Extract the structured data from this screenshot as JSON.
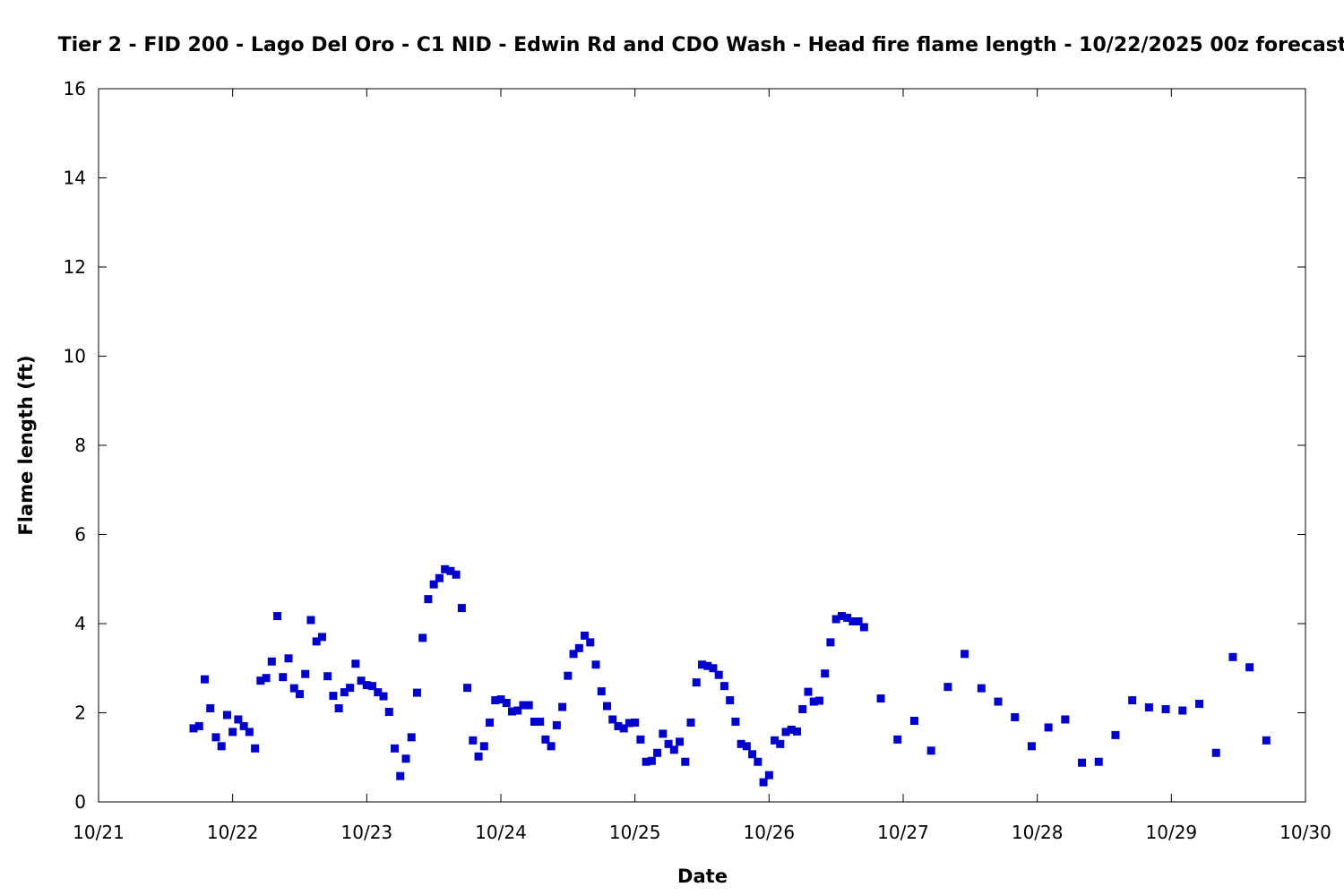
{
  "chart_data": {
    "type": "scatter",
    "title": "Tier 2 - FID 200 - Lago Del Oro - C1 NID - Edwin Rd and CDO Wash - Head fire flame length - 10/22/2025 00z forecast",
    "xlabel": "Date",
    "ylabel": "Flame length (ft)",
    "x_ticks": [
      "10/21",
      "10/22",
      "10/23",
      "10/24",
      "10/25",
      "10/26",
      "10/27",
      "10/28",
      "10/29",
      "10/30"
    ],
    "y_ticks": [
      "0",
      "2",
      "4",
      "6",
      "8",
      "10",
      "12",
      "14",
      "16"
    ],
    "ylim": [
      0,
      16
    ],
    "xlim": [
      "10/21",
      "10/30"
    ],
    "grid": false,
    "marker_color": "#0000cc",
    "points": [
      [
        "10/21 17:00",
        1.65
      ],
      [
        "10/21 18:00",
        1.7
      ],
      [
        "10/21 19:00",
        2.75
      ],
      [
        "10/21 20:00",
        2.1
      ],
      [
        "10/21 21:00",
        1.45
      ],
      [
        "10/21 22:00",
        1.25
      ],
      [
        "10/21 23:00",
        1.95
      ],
      [
        "10/22 00:00",
        1.57
      ],
      [
        "10/22 01:00",
        1.85
      ],
      [
        "10/22 02:00",
        1.7
      ],
      [
        "10/22 03:00",
        1.57
      ],
      [
        "10/22 04:00",
        1.2
      ],
      [
        "10/22 05:00",
        2.72
      ],
      [
        "10/22 06:00",
        2.78
      ],
      [
        "10/22 07:00",
        3.15
      ],
      [
        "10/22 08:00",
        4.17
      ],
      [
        "10/22 09:00",
        2.8
      ],
      [
        "10/22 10:00",
        3.22
      ],
      [
        "10/22 11:00",
        2.55
      ],
      [
        "10/22 12:00",
        2.42
      ],
      [
        "10/22 13:00",
        2.87
      ],
      [
        "10/22 14:00",
        4.08
      ],
      [
        "10/22 15:00",
        3.6
      ],
      [
        "10/22 16:00",
        3.7
      ],
      [
        "10/22 17:00",
        2.82
      ],
      [
        "10/22 18:00",
        2.38
      ],
      [
        "10/22 19:00",
        2.1
      ],
      [
        "10/22 20:00",
        2.46
      ],
      [
        "10/22 21:00",
        2.56
      ],
      [
        "10/22 22:00",
        3.1
      ],
      [
        "10/22 23:00",
        2.72
      ],
      [
        "10/23 00:00",
        2.62
      ],
      [
        "10/23 01:00",
        2.6
      ],
      [
        "10/23 02:00",
        2.46
      ],
      [
        "10/23 03:00",
        2.37
      ],
      [
        "10/23 04:00",
        2.02
      ],
      [
        "10/23 05:00",
        1.2
      ],
      [
        "10/23 06:00",
        0.58
      ],
      [
        "10/23 07:00",
        0.97
      ],
      [
        "10/23 08:00",
        1.45
      ],
      [
        "10/23 09:00",
        2.45
      ],
      [
        "10/23 10:00",
        3.68
      ],
      [
        "10/23 11:00",
        4.55
      ],
      [
        "10/23 12:00",
        4.88
      ],
      [
        "10/23 13:00",
        5.02
      ],
      [
        "10/23 14:00",
        5.22
      ],
      [
        "10/23 15:00",
        5.18
      ],
      [
        "10/23 16:00",
        5.1
      ],
      [
        "10/23 17:00",
        4.35
      ],
      [
        "10/23 18:00",
        2.56
      ],
      [
        "10/23 19:00",
        1.38
      ],
      [
        "10/23 20:00",
        1.02
      ],
      [
        "10/23 21:00",
        1.25
      ],
      [
        "10/23 22:00",
        1.78
      ],
      [
        "10/23 23:00",
        2.28
      ],
      [
        "10/24 00:00",
        2.3
      ],
      [
        "10/24 01:00",
        2.22
      ],
      [
        "10/24 02:00",
        2.03
      ],
      [
        "10/24 03:00",
        2.05
      ],
      [
        "10/24 04:00",
        2.17
      ],
      [
        "10/24 05:00",
        2.17
      ],
      [
        "10/24 06:00",
        1.8
      ],
      [
        "10/24 07:00",
        1.8
      ],
      [
        "10/24 08:00",
        1.4
      ],
      [
        "10/24 09:00",
        1.25
      ],
      [
        "10/24 10:00",
        1.72
      ],
      [
        "10/24 11:00",
        2.13
      ],
      [
        "10/24 12:00",
        2.83
      ],
      [
        "10/24 13:00",
        3.32
      ],
      [
        "10/24 14:00",
        3.45
      ],
      [
        "10/24 15:00",
        3.73
      ],
      [
        "10/24 16:00",
        3.58
      ],
      [
        "10/24 17:00",
        3.08
      ],
      [
        "10/24 18:00",
        2.48
      ],
      [
        "10/24 19:00",
        2.15
      ],
      [
        "10/24 20:00",
        1.85
      ],
      [
        "10/24 21:00",
        1.7
      ],
      [
        "10/24 22:00",
        1.65
      ],
      [
        "10/24 23:00",
        1.77
      ],
      [
        "10/25 00:00",
        1.78
      ],
      [
        "10/25 01:00",
        1.4
      ],
      [
        "10/25 02:00",
        0.9
      ],
      [
        "10/25 03:00",
        0.92
      ],
      [
        "10/25 04:00",
        1.1
      ],
      [
        "10/25 05:00",
        1.53
      ],
      [
        "10/25 06:00",
        1.3
      ],
      [
        "10/25 07:00",
        1.17
      ],
      [
        "10/25 08:00",
        1.35
      ],
      [
        "10/25 09:00",
        0.9
      ],
      [
        "10/25 10:00",
        1.78
      ],
      [
        "10/25 11:00",
        2.68
      ],
      [
        "10/25 12:00",
        3.08
      ],
      [
        "10/25 13:00",
        3.05
      ],
      [
        "10/25 14:00",
        3.0
      ],
      [
        "10/25 15:00",
        2.85
      ],
      [
        "10/25 16:00",
        2.6
      ],
      [
        "10/25 17:00",
        2.28
      ],
      [
        "10/25 18:00",
        1.8
      ],
      [
        "10/25 19:00",
        1.3
      ],
      [
        "10/25 20:00",
        1.25
      ],
      [
        "10/25 21:00",
        1.07
      ],
      [
        "10/25 22:00",
        0.9
      ],
      [
        "10/25 23:00",
        0.44
      ],
      [
        "10/26 00:00",
        0.6
      ],
      [
        "10/26 01:00",
        1.38
      ],
      [
        "10/26 02:00",
        1.3
      ],
      [
        "10/26 03:00",
        1.57
      ],
      [
        "10/26 04:00",
        1.62
      ],
      [
        "10/26 05:00",
        1.58
      ],
      [
        "10/26 06:00",
        2.08
      ],
      [
        "10/26 07:00",
        2.47
      ],
      [
        "10/26 08:00",
        2.25
      ],
      [
        "10/26 09:00",
        2.27
      ],
      [
        "10/26 10:00",
        2.88
      ],
      [
        "10/26 11:00",
        3.58
      ],
      [
        "10/26 12:00",
        4.1
      ],
      [
        "10/26 13:00",
        4.17
      ],
      [
        "10/26 14:00",
        4.13
      ],
      [
        "10/26 15:00",
        4.05
      ],
      [
        "10/26 16:00",
        4.05
      ],
      [
        "10/26 17:00",
        3.92
      ],
      [
        "10/26 20:00",
        2.32
      ],
      [
        "10/26 23:00",
        1.4
      ],
      [
        "10/27 02:00",
        1.82
      ],
      [
        "10/27 05:00",
        1.15
      ],
      [
        "10/27 08:00",
        2.58
      ],
      [
        "10/27 11:00",
        3.32
      ],
      [
        "10/27 14:00",
        2.55
      ],
      [
        "10/27 17:00",
        2.25
      ],
      [
        "10/27 20:00",
        1.9
      ],
      [
        "10/27 23:00",
        1.25
      ],
      [
        "10/28 02:00",
        1.67
      ],
      [
        "10/28 05:00",
        1.85
      ],
      [
        "10/28 08:00",
        0.88
      ],
      [
        "10/28 11:00",
        0.9
      ],
      [
        "10/28 14:00",
        1.5
      ],
      [
        "10/28 17:00",
        2.28
      ],
      [
        "10/28 20:00",
        2.12
      ],
      [
        "10/28 23:00",
        2.08
      ],
      [
        "10/29 02:00",
        2.05
      ],
      [
        "10/29 05:00",
        2.2
      ],
      [
        "10/29 08:00",
        1.1
      ],
      [
        "10/29 11:00",
        3.25
      ],
      [
        "10/29 14:00",
        3.02
      ],
      [
        "10/29 17:00",
        1.38
      ]
    ]
  }
}
